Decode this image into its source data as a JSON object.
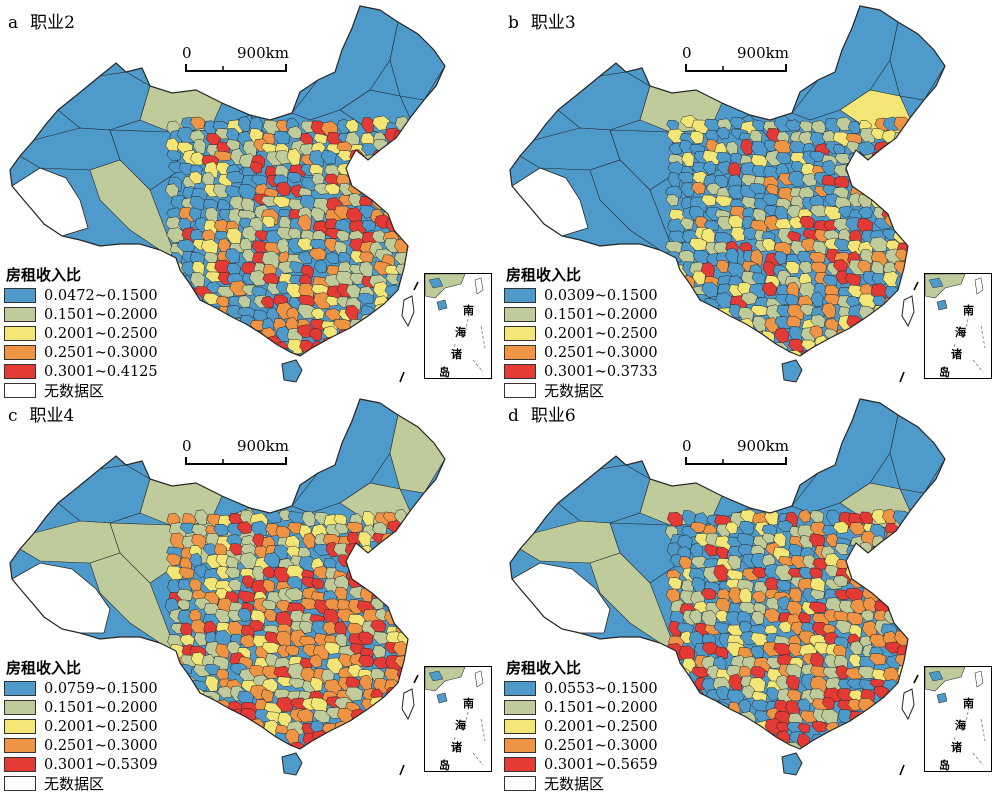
{
  "legend_title": "房租收入比",
  "no_data_label": "无数据区",
  "scale": {
    "zero": "0",
    "distance": "900km"
  },
  "inset_labels": [
    "南",
    "海",
    "诸",
    "岛"
  ],
  "colors": {
    "class1": "#4d9acb",
    "class2": "#bfcb9a",
    "class3": "#f3e677",
    "class4": "#ef9444",
    "class5": "#e33a35",
    "nodata": "#ffffff",
    "boundary": "#262626"
  },
  "panels": [
    {
      "letter": "a",
      "title": "职业2",
      "ranges": [
        "0.0472~0.1500",
        "0.1501~0.2000",
        "0.2001~0.2500",
        "0.2501~0.3000",
        "0.3001~0.4125"
      ]
    },
    {
      "letter": "b",
      "title": "职业3",
      "ranges": [
        "0.0309~0.1500",
        "0.1501~0.2000",
        "0.2001~0.2500",
        "0.2501~0.3000",
        "0.3001~0.3733"
      ]
    },
    {
      "letter": "c",
      "title": "职业4",
      "ranges": [
        "0.0759~0.1500",
        "0.1501~0.2000",
        "0.2001~0.2500",
        "0.2501~0.3000",
        "0.3001~0.5309"
      ]
    },
    {
      "letter": "d",
      "title": "职业6",
      "ranges": [
        "0.0553~0.1500",
        "0.1501~0.2000",
        "0.2001~0.2500",
        "0.2501~0.3000",
        "0.3001~0.5659"
      ]
    }
  ]
}
